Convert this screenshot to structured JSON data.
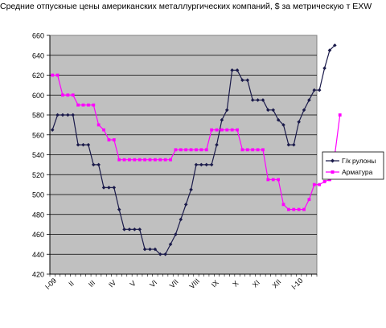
{
  "chart_data": {
    "type": "line",
    "title": "Средние отпускные цены американских металлургических компаний, $ за метрическую т EXW",
    "xlabel": "",
    "ylabel": "",
    "ylim": [
      420,
      660
    ],
    "yticks": [
      420,
      440,
      460,
      480,
      500,
      520,
      540,
      560,
      580,
      600,
      620,
      640,
      660
    ],
    "grid": true,
    "legend_position": "right",
    "x_labels": [
      "I-09",
      "II",
      "III",
      "IV",
      "V",
      "VI",
      "VII",
      "VIII",
      "IX",
      "X",
      "XI",
      "XII",
      "I-10"
    ],
    "points_per_label": 4,
    "series": [
      {
        "name": "Г/к рулоны",
        "color": "#1a1a4a",
        "marker": "diamond",
        "values": [
          565,
          580,
          580,
          580,
          580,
          550,
          550,
          550,
          530,
          530,
          507,
          507,
          507,
          485,
          465,
          465,
          465,
          465,
          445,
          445,
          445,
          440,
          440,
          450,
          460,
          475,
          490,
          505,
          530,
          530,
          530,
          530,
          550,
          575,
          585,
          625,
          625,
          615,
          615,
          595,
          595,
          595,
          585,
          585,
          575,
          570,
          550,
          550,
          573,
          585,
          595,
          605,
          605,
          627,
          645,
          650
        ]
      },
      {
        "name": "Арматура",
        "color": "#ff00ff",
        "marker": "square",
        "values": [
          620,
          620,
          600,
          600,
          600,
          590,
          590,
          590,
          590,
          570,
          565,
          555,
          555,
          535,
          535,
          535,
          535,
          535,
          535,
          535,
          535,
          535,
          535,
          535,
          545,
          545,
          545,
          545,
          545,
          545,
          545,
          565,
          565,
          565,
          565,
          565,
          565,
          545,
          545,
          545,
          545,
          545,
          515,
          515,
          515,
          490,
          485,
          485,
          485,
          485,
          495,
          510,
          510,
          513,
          515,
          540,
          580
        ]
      }
    ]
  }
}
